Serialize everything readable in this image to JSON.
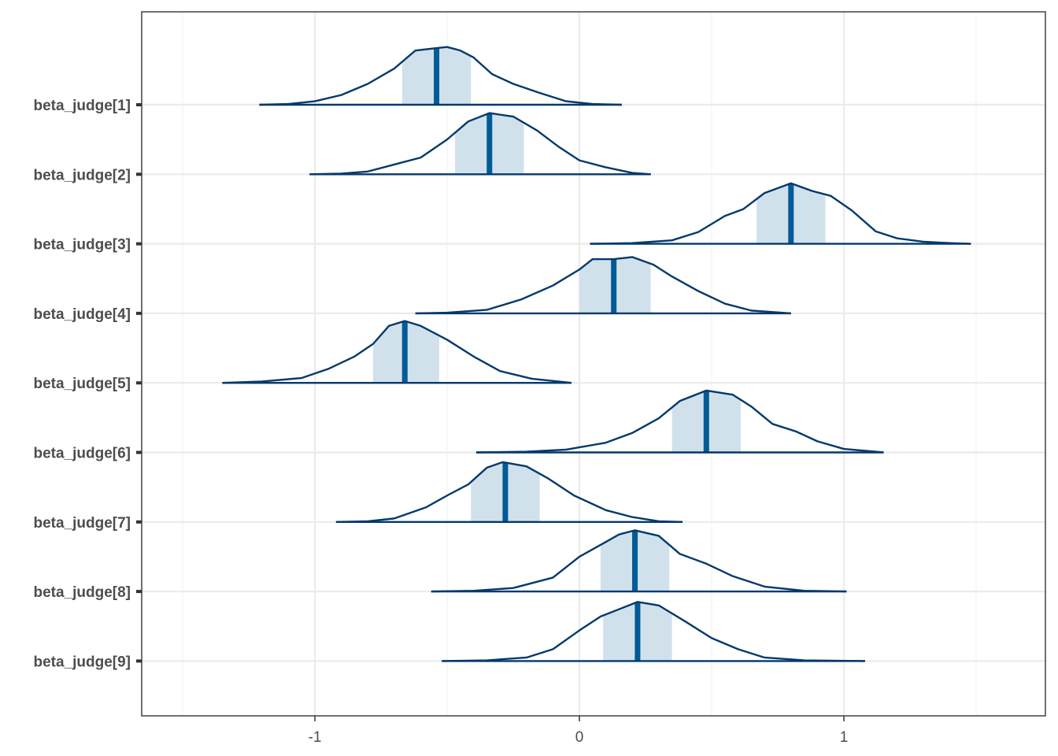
{
  "chart_data": {
    "type": "area",
    "subtype": "posterior-density-ridges",
    "title": "",
    "xlabel": "",
    "ylabel": "",
    "xlim": [
      -1.5,
      1.5
    ],
    "x_ticks": [
      -1,
      0,
      1
    ],
    "x_tick_labels": [
      "-1",
      "0",
      "1"
    ],
    "grid": true,
    "colors": {
      "outline": "#03396c",
      "inner_fill": "#d1e1ec",
      "median_line": "#005b96",
      "grid_major": "#ebebeb",
      "grid_minor": "#f4f4f4",
      "panel_border": "#333333",
      "text": "#4d4d4d"
    },
    "series": [
      {
        "name": "beta_judge[1]",
        "min": -1.21,
        "max": 0.16,
        "median": -0.54,
        "inner": [
          -0.67,
          -0.41
        ],
        "mode": -0.5,
        "peak": 0.83,
        "density": [
          [
            -1.21,
            0
          ],
          [
            -1.1,
            0.01
          ],
          [
            -1.0,
            0.05
          ],
          [
            -0.9,
            0.14
          ],
          [
            -0.8,
            0.3
          ],
          [
            -0.7,
            0.52
          ],
          [
            -0.62,
            0.78
          ],
          [
            -0.55,
            0.81
          ],
          [
            -0.5,
            0.83
          ],
          [
            -0.45,
            0.78
          ],
          [
            -0.4,
            0.68
          ],
          [
            -0.33,
            0.44
          ],
          [
            -0.25,
            0.3
          ],
          [
            -0.15,
            0.17
          ],
          [
            -0.05,
            0.05
          ],
          [
            0.05,
            0.01
          ],
          [
            0.16,
            0
          ]
        ]
      },
      {
        "name": "beta_judge[2]",
        "min": -1.02,
        "max": 0.27,
        "median": -0.34,
        "inner": [
          -0.47,
          -0.21
        ],
        "mode": -0.34,
        "peak": 0.88,
        "density": [
          [
            -1.02,
            0
          ],
          [
            -0.9,
            0.01
          ],
          [
            -0.8,
            0.04
          ],
          [
            -0.7,
            0.14
          ],
          [
            -0.6,
            0.24
          ],
          [
            -0.5,
            0.5
          ],
          [
            -0.42,
            0.76
          ],
          [
            -0.34,
            0.88
          ],
          [
            -0.25,
            0.83
          ],
          [
            -0.16,
            0.63
          ],
          [
            -0.08,
            0.4
          ],
          [
            0,
            0.2
          ],
          [
            0.1,
            0.1
          ],
          [
            0.2,
            0.02
          ],
          [
            0.27,
            0
          ]
        ]
      },
      {
        "name": "beta_judge[3]",
        "min": 0.04,
        "max": 1.48,
        "median": 0.8,
        "inner": [
          0.67,
          0.93
        ],
        "mode": 0.8,
        "peak": 0.87,
        "density": [
          [
            0.04,
            0
          ],
          [
            0.2,
            0.01
          ],
          [
            0.35,
            0.05
          ],
          [
            0.45,
            0.17
          ],
          [
            0.55,
            0.4
          ],
          [
            0.62,
            0.5
          ],
          [
            0.7,
            0.73
          ],
          [
            0.8,
            0.87
          ],
          [
            0.88,
            0.76
          ],
          [
            0.95,
            0.69
          ],
          [
            1.03,
            0.48
          ],
          [
            1.12,
            0.18
          ],
          [
            1.2,
            0.08
          ],
          [
            1.3,
            0.03
          ],
          [
            1.4,
            0.01
          ],
          [
            1.48,
            0
          ]
        ]
      },
      {
        "name": "beta_judge[4]",
        "min": -0.62,
        "max": 0.8,
        "median": 0.13,
        "inner": [
          0,
          0.27
        ],
        "mode": 0.16,
        "peak": 0.81,
        "density": [
          [
            -0.62,
            0
          ],
          [
            -0.5,
            0.01
          ],
          [
            -0.35,
            0.05
          ],
          [
            -0.22,
            0.2
          ],
          [
            -0.1,
            0.4
          ],
          [
            0,
            0.63
          ],
          [
            0.05,
            0.78
          ],
          [
            0.13,
            0.78
          ],
          [
            0.2,
            0.81
          ],
          [
            0.28,
            0.7
          ],
          [
            0.35,
            0.53
          ],
          [
            0.45,
            0.32
          ],
          [
            0.55,
            0.14
          ],
          [
            0.65,
            0.04
          ],
          [
            0.8,
            0
          ]
        ]
      },
      {
        "name": "beta_judge[5]",
        "min": -1.35,
        "max": -0.03,
        "median": -0.66,
        "inner": [
          -0.78,
          -0.53
        ],
        "mode": -0.66,
        "peak": 0.89,
        "density": [
          [
            -1.35,
            0
          ],
          [
            -1.2,
            0.02
          ],
          [
            -1.05,
            0.07
          ],
          [
            -0.95,
            0.2
          ],
          [
            -0.85,
            0.38
          ],
          [
            -0.78,
            0.56
          ],
          [
            -0.72,
            0.82
          ],
          [
            -0.66,
            0.89
          ],
          [
            -0.6,
            0.82
          ],
          [
            -0.5,
            0.62
          ],
          [
            -0.4,
            0.38
          ],
          [
            -0.3,
            0.17
          ],
          [
            -0.18,
            0.06
          ],
          [
            -0.08,
            0.02
          ],
          [
            -0.03,
            0
          ]
        ]
      },
      {
        "name": "beta_judge[6]",
        "min": -0.39,
        "max": 1.15,
        "median": 0.48,
        "inner": [
          0.35,
          0.61
        ],
        "mode": 0.48,
        "peak": 0.89,
        "density": [
          [
            -0.39,
            0
          ],
          [
            -0.2,
            0.01
          ],
          [
            -0.05,
            0.04
          ],
          [
            0.1,
            0.14
          ],
          [
            0.2,
            0.28
          ],
          [
            0.3,
            0.49
          ],
          [
            0.38,
            0.74
          ],
          [
            0.48,
            0.89
          ],
          [
            0.58,
            0.83
          ],
          [
            0.65,
            0.66
          ],
          [
            0.73,
            0.41
          ],
          [
            0.82,
            0.3
          ],
          [
            0.9,
            0.16
          ],
          [
            1.0,
            0.05
          ],
          [
            1.15,
            0
          ]
        ]
      },
      {
        "name": "beta_judge[7]",
        "min": -0.92,
        "max": 0.39,
        "median": -0.28,
        "inner": [
          -0.41,
          -0.15
        ],
        "mode": -0.29,
        "peak": 0.86,
        "density": [
          [
            -0.92,
            0
          ],
          [
            -0.8,
            0.01
          ],
          [
            -0.7,
            0.05
          ],
          [
            -0.58,
            0.21
          ],
          [
            -0.5,
            0.38
          ],
          [
            -0.42,
            0.54
          ],
          [
            -0.35,
            0.78
          ],
          [
            -0.29,
            0.86
          ],
          [
            -0.2,
            0.8
          ],
          [
            -0.12,
            0.63
          ],
          [
            -0.02,
            0.38
          ],
          [
            0.1,
            0.17
          ],
          [
            0.2,
            0.07
          ],
          [
            0.3,
            0.01
          ],
          [
            0.39,
            0
          ]
        ]
      },
      {
        "name": "beta_judge[8]",
        "min": -0.56,
        "max": 1.01,
        "median": 0.21,
        "inner": [
          0.08,
          0.34
        ],
        "mode": 0.21,
        "peak": 0.88,
        "density": [
          [
            -0.56,
            0
          ],
          [
            -0.4,
            0.01
          ],
          [
            -0.25,
            0.05
          ],
          [
            -0.1,
            0.2
          ],
          [
            0,
            0.5
          ],
          [
            0.08,
            0.67
          ],
          [
            0.15,
            0.82
          ],
          [
            0.21,
            0.88
          ],
          [
            0.3,
            0.8
          ],
          [
            0.38,
            0.54
          ],
          [
            0.48,
            0.4
          ],
          [
            0.58,
            0.22
          ],
          [
            0.7,
            0.07
          ],
          [
            0.85,
            0.01
          ],
          [
            1.01,
            0
          ]
        ]
      },
      {
        "name": "beta_judge[9]",
        "min": -0.52,
        "max": 1.08,
        "median": 0.22,
        "inner": [
          0.09,
          0.35
        ],
        "mode": 0.22,
        "peak": 0.85,
        "density": [
          [
            -0.52,
            0
          ],
          [
            -0.35,
            0.01
          ],
          [
            -0.2,
            0.05
          ],
          [
            -0.1,
            0.17
          ],
          [
            0,
            0.44
          ],
          [
            0.08,
            0.64
          ],
          [
            0.14,
            0.73
          ],
          [
            0.22,
            0.85
          ],
          [
            0.3,
            0.8
          ],
          [
            0.4,
            0.57
          ],
          [
            0.5,
            0.33
          ],
          [
            0.6,
            0.17
          ],
          [
            0.7,
            0.05
          ],
          [
            0.85,
            0.01
          ],
          [
            1.08,
            0
          ]
        ]
      }
    ]
  }
}
